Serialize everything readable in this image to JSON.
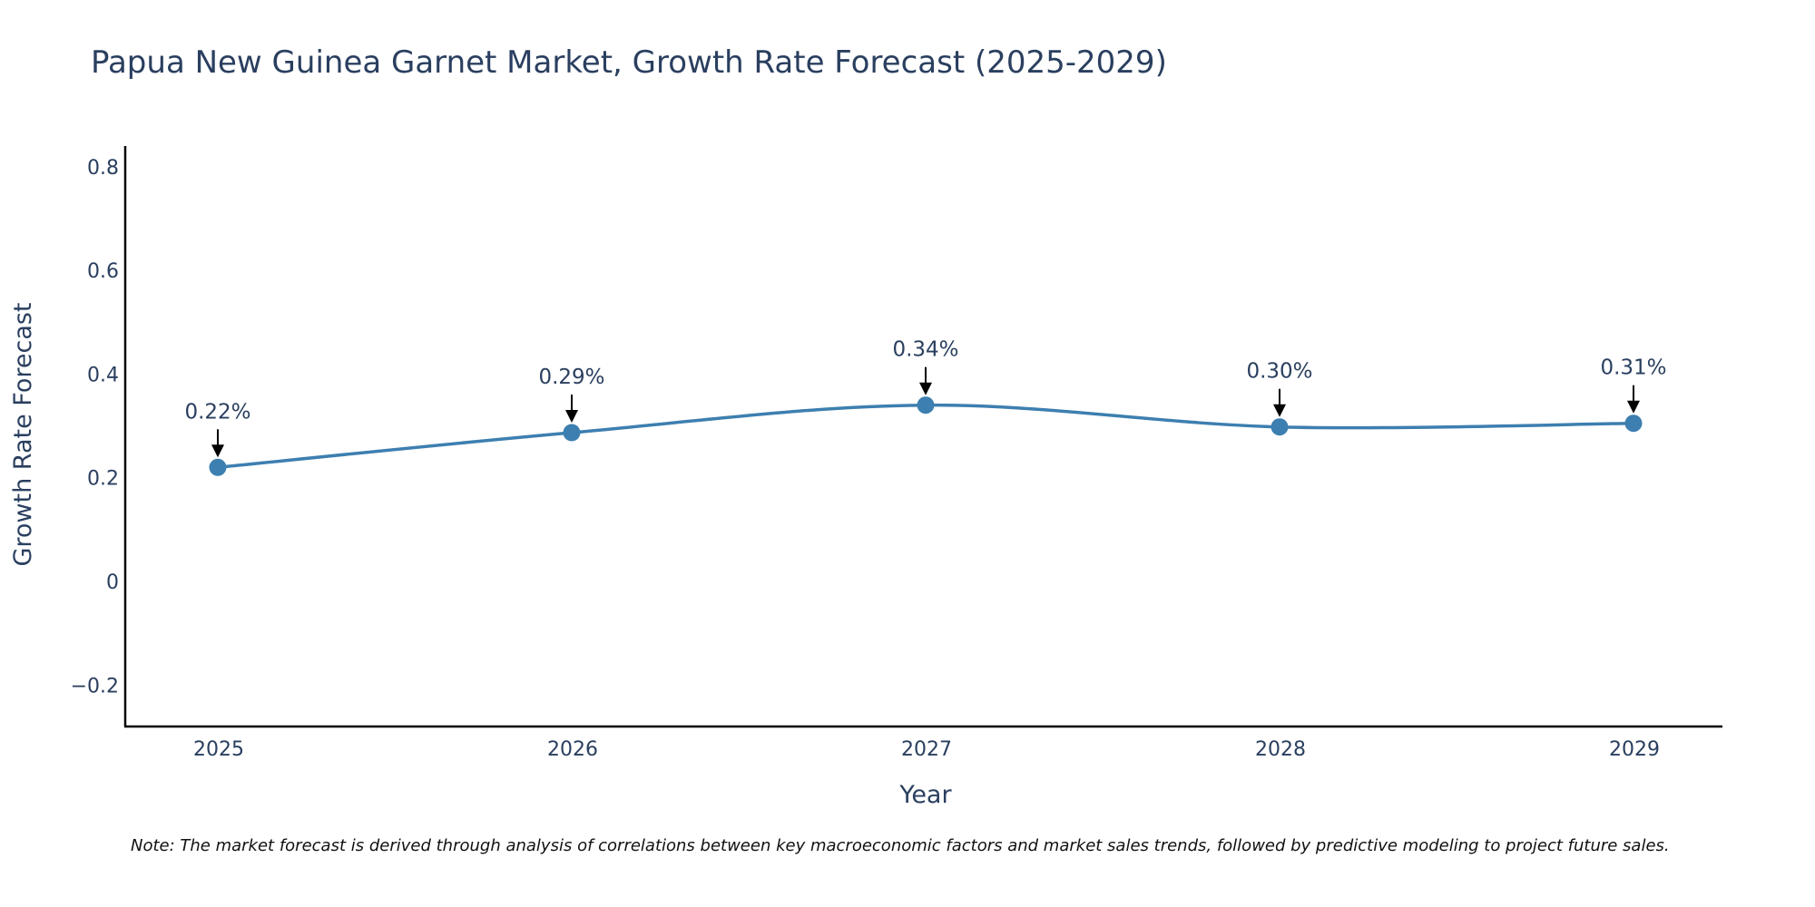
{
  "chart_data": {
    "type": "line",
    "title": "Papua New Guinea Garnet Market, Growth Rate Forecast (2025-2029)",
    "xlabel": "Year",
    "ylabel": "Growth Rate Forecast",
    "categories": [
      "2025",
      "2026",
      "2027",
      "2028",
      "2029"
    ],
    "values": [
      0.22,
      0.287,
      0.34,
      0.298,
      0.305
    ],
    "data_labels": [
      "0.22%",
      "0.29%",
      "0.34%",
      "0.30%",
      "0.31%"
    ],
    "ylim": [
      -0.28,
      0.84
    ],
    "yticks": [
      -0.2,
      0,
      0.2,
      0.4,
      0.6,
      0.8
    ],
    "ytick_labels": [
      "−0.2",
      "0",
      "0.2",
      "0.4",
      "0.6",
      "0.8"
    ],
    "line_shape": "spline",
    "grid": false,
    "series_color": "#3d7fb0",
    "annotation_style": "arrow"
  },
  "note": "Note: The market forecast is derived through analysis of correlations between key macroeconomic factors and market sales trends, followed by predictive modeling to project future sales."
}
